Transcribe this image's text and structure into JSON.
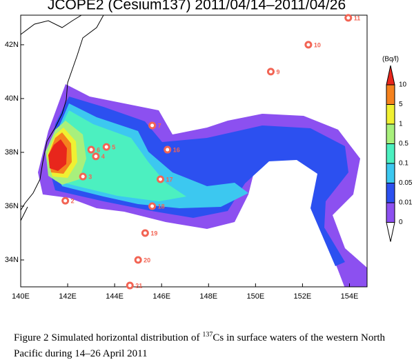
{
  "chart_data": {
    "type": "map",
    "title": "JCOPE2 (Cesium137) 2011/04/14–2011/04/26",
    "xlim": [
      140,
      154.75
    ],
    "ylim": [
      33,
      43.1
    ],
    "xticks": [
      {
        "value": 140,
        "label": "140E"
      },
      {
        "value": 142,
        "label": "142E"
      },
      {
        "value": 144,
        "label": "144E"
      },
      {
        "value": 146,
        "label": "146E"
      },
      {
        "value": 148,
        "label": "148E"
      },
      {
        "value": 150,
        "label": "150E"
      },
      {
        "value": 152,
        "label": "152E"
      },
      {
        "value": 154,
        "label": "154E"
      }
    ],
    "yticks": [
      {
        "value": 34,
        "label": "34N"
      },
      {
        "value": 36,
        "label": "36N"
      },
      {
        "value": 38,
        "label": "38N"
      },
      {
        "value": 40,
        "label": "40N"
      },
      {
        "value": 42,
        "label": "42N"
      }
    ],
    "stations": [
      {
        "label": "2",
        "lon": 141.9,
        "lat": 36.2
      },
      {
        "label": "3",
        "lon": 142.65,
        "lat": 37.1
      },
      {
        "label": "4",
        "lon": 143.2,
        "lat": 37.85
      },
      {
        "label": "5",
        "lon": 143.65,
        "lat": 38.2
      },
      {
        "label": "6",
        "lon": 143.0,
        "lat": 38.1
      },
      {
        "label": "7",
        "lon": 145.6,
        "lat": 39.0
      },
      {
        "label": "9",
        "lon": 150.65,
        "lat": 41.0
      },
      {
        "label": "10",
        "lon": 152.25,
        "lat": 42.0
      },
      {
        "label": "11",
        "lon": 153.95,
        "lat": 43.0
      },
      {
        "label": "16",
        "lon": 146.25,
        "lat": 38.1
      },
      {
        "label": "17",
        "lon": 145.95,
        "lat": 37.0
      },
      {
        "label": "18",
        "lon": 145.6,
        "lat": 36.0
      },
      {
        "label": "19",
        "lon": 145.3,
        "lat": 35.0
      },
      {
        "label": "20",
        "lon": 145.0,
        "lat": 34.0
      },
      {
        "label": "21",
        "lon": 144.65,
        "lat": 33.05
      }
    ],
    "marker_color": "#f26454",
    "colorbar": {
      "unit": "(Bq/l)",
      "levels": [
        "10",
        "5",
        "1",
        "0.5",
        "0.1",
        "0.05",
        "0.01",
        "0"
      ],
      "colors": [
        "#e8261c",
        "#f5821e",
        "#f0f032",
        "#a8f07c",
        "#4cf0c0",
        "#3cc8f0",
        "#2c50f0",
        "#8c50f0",
        "#ffffff"
      ]
    }
  },
  "caption": {
    "before": "Figure 2 Simulated horizontal distribution of ",
    "superscript": "137",
    "after": "Cs in surface waters of the western North Pacific during 14–26 April 2011"
  }
}
